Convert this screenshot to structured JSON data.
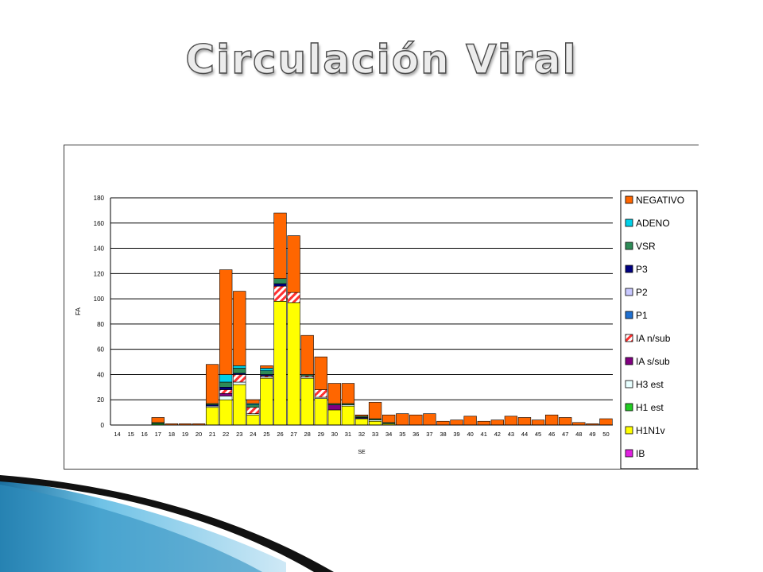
{
  "slide": {
    "title": "Circulación Viral"
  },
  "chart_data": {
    "type": "bar",
    "stacked": true,
    "xlabel": "SE",
    "ylabel": "FA",
    "ylim": [
      0,
      180
    ],
    "yticks": [
      0,
      20,
      40,
      60,
      80,
      100,
      120,
      140,
      160,
      180
    ],
    "grid": true,
    "legend_position": "right",
    "categories": [
      "14",
      "15",
      "16",
      "17",
      "18",
      "19",
      "20",
      "21",
      "22",
      "23",
      "24",
      "25",
      "26",
      "27",
      "28",
      "29",
      "30",
      "31",
      "32",
      "33",
      "34",
      "35",
      "36",
      "37",
      "38",
      "39",
      "40",
      "41",
      "42",
      "43",
      "44",
      "45",
      "46",
      "47",
      "48",
      "49",
      "50"
    ],
    "series": [
      {
        "name": "IB",
        "color": "#e020e0",
        "pattern": "solid",
        "values": [
          0,
          0,
          0,
          0,
          0,
          0,
          0,
          0,
          0,
          0,
          0,
          0,
          0,
          0,
          0,
          0,
          0,
          0,
          0,
          0,
          0,
          0,
          0,
          0,
          0,
          0,
          0,
          0,
          0,
          0,
          0,
          0,
          0,
          0,
          0,
          0,
          0
        ]
      },
      {
        "name": "H1N1v",
        "color": "#ffff00",
        "pattern": "solid",
        "values": [
          0,
          0,
          0,
          0,
          0,
          0,
          0,
          14,
          20,
          32,
          8,
          37,
          98,
          97,
          37,
          21,
          12,
          15,
          5,
          3,
          1,
          0,
          0,
          0,
          0,
          0,
          0,
          0,
          0,
          0,
          0,
          0,
          0,
          0,
          0,
          0,
          0
        ]
      },
      {
        "name": "H1 est",
        "color": "#22cc22",
        "pattern": "solid",
        "values": [
          0,
          0,
          0,
          1,
          0,
          0,
          0,
          0,
          0,
          0,
          0,
          0,
          0,
          0,
          0,
          0,
          0,
          0,
          0,
          0,
          0,
          0,
          0,
          0,
          0,
          0,
          0,
          0,
          0,
          0,
          0,
          0,
          0,
          0,
          0,
          0,
          0
        ]
      },
      {
        "name": "H3 est",
        "color": "#e8ffff",
        "pattern": "solid",
        "values": [
          0,
          0,
          0,
          0,
          0,
          0,
          0,
          1,
          3,
          2,
          1,
          1,
          0,
          0,
          1,
          1,
          0,
          1,
          0,
          1,
          0,
          0,
          0,
          0,
          0,
          0,
          0,
          0,
          0,
          0,
          0,
          0,
          0,
          0,
          0,
          0,
          0
        ]
      },
      {
        "name": "IA s/sub",
        "color": "#800080",
        "pattern": "solid",
        "values": [
          0,
          0,
          0,
          0,
          0,
          0,
          0,
          0,
          2,
          0,
          0,
          0,
          0,
          0,
          0,
          0,
          4,
          0,
          0,
          0,
          0,
          0,
          0,
          0,
          0,
          0,
          0,
          0,
          0,
          0,
          0,
          0,
          0,
          0,
          0,
          0,
          0
        ]
      },
      {
        "name": "IA n/sub",
        "color": "#ff3030",
        "pattern": "hatch",
        "values": [
          0,
          0,
          0,
          0,
          0,
          0,
          0,
          0,
          3,
          6,
          5,
          1,
          12,
          8,
          1,
          6,
          0,
          0,
          0,
          0,
          0,
          0,
          0,
          0,
          0,
          0,
          0,
          0,
          0,
          0,
          0,
          0,
          0,
          0,
          0,
          0,
          0
        ]
      },
      {
        "name": "P1",
        "color": "#2070d0",
        "pattern": "solid",
        "values": [
          0,
          0,
          0,
          0,
          0,
          0,
          0,
          0,
          0,
          0,
          0,
          0,
          0,
          0,
          0,
          0,
          0,
          0,
          0,
          0,
          0,
          0,
          0,
          0,
          0,
          0,
          0,
          0,
          0,
          0,
          0,
          0,
          0,
          0,
          0,
          0,
          0
        ]
      },
      {
        "name": "P2",
        "color": "#c8c8ff",
        "pattern": "solid",
        "values": [
          0,
          0,
          0,
          0,
          0,
          0,
          0,
          0,
          0,
          0,
          0,
          0,
          0,
          0,
          0,
          0,
          0,
          0,
          0,
          0,
          0,
          0,
          0,
          0,
          0,
          0,
          0,
          0,
          0,
          0,
          0,
          0,
          0,
          0,
          0,
          0,
          0
        ]
      },
      {
        "name": "P3",
        "color": "#000080",
        "pattern": "solid",
        "values": [
          0,
          0,
          0,
          0,
          0,
          0,
          0,
          1,
          2,
          1,
          0,
          1,
          2,
          0,
          0,
          0,
          0,
          0,
          1,
          0,
          0,
          0,
          0,
          0,
          0,
          0,
          0,
          0,
          0,
          0,
          0,
          0,
          0,
          0,
          0,
          0,
          0
        ]
      },
      {
        "name": "VSR",
        "color": "#2e8b57",
        "pattern": "solid",
        "values": [
          0,
          0,
          0,
          1,
          0,
          0,
          0,
          1,
          4,
          4,
          2,
          3,
          4,
          0,
          1,
          0,
          1,
          1,
          1,
          1,
          1,
          0,
          0,
          0,
          0,
          0,
          0,
          0,
          0,
          0,
          0,
          0,
          0,
          0,
          0,
          0,
          0
        ]
      },
      {
        "name": "ADENO",
        "color": "#00d0e8",
        "pattern": "solid",
        "values": [
          0,
          0,
          0,
          0,
          0,
          0,
          0,
          0,
          6,
          2,
          1,
          2,
          0,
          0,
          0,
          0,
          0,
          0,
          0,
          0,
          0,
          0,
          0,
          0,
          0,
          0,
          0,
          0,
          0,
          0,
          0,
          0,
          0,
          0,
          0,
          0,
          0
        ]
      },
      {
        "name": "NEGATIVO",
        "color": "#ff6600",
        "pattern": "solid",
        "values": [
          0,
          0,
          0,
          4,
          1,
          1,
          1,
          31,
          83,
          59,
          3,
          2,
          52,
          45,
          31,
          26,
          16,
          16,
          1,
          13,
          6,
          9,
          8,
          9,
          3,
          4,
          7,
          3,
          4,
          7,
          6,
          4,
          8,
          6,
          2,
          1,
          5
        ]
      }
    ],
    "legend_order": [
      "NEGATIVO",
      "ADENO",
      "VSR",
      "P3",
      "P2",
      "P1",
      "IA n/sub",
      "IA s/sub",
      "H3 est",
      "H1 est",
      "H1N1v",
      "IB"
    ],
    "legend_labels": [
      "NEGATIVO",
      "ADENO",
      "VSR",
      "P3",
      "P2",
      "P1",
      "IA n/sub",
      "IA s/sub",
      "H3 est",
      "H1 est",
      "H1N1v",
      "IB"
    ]
  }
}
